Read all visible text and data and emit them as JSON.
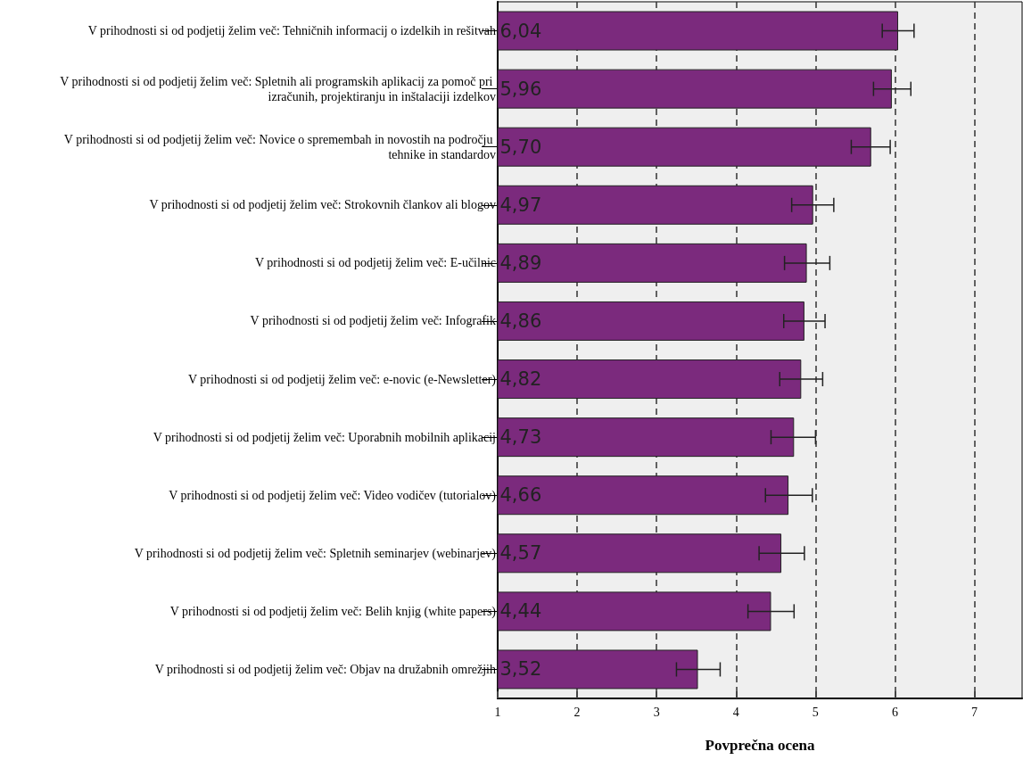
{
  "chart_data": {
    "type": "bar",
    "orientation": "horizontal",
    "xlabel": "Povprečna ocena",
    "categories": [
      "V prihodnosti si od podjetij želim več: Tehničnih informacij o izdelkih in rešitvah",
      "V prihodnosti si od podjetij želim več: Spletnih ali programskih aplikacij za pomoč pri izračunih, projektiranju in inštalaciji izdelkov",
      "V prihodnosti si od podjetij želim več: Novice o spremembah in novostih na področju tehnike in standardov",
      "V prihodnosti si od podjetij želim več: Strokovnih člankov ali blogov",
      "V prihodnosti si od podjetij želim več: E-učilnic",
      "V prihodnosti si od podjetij želim več: Infografik",
      "V prihodnosti si od podjetij želim več: e-novic (e-Newsletter)",
      "V prihodnosti si od podjetij želim več: Uporabnih mobilnih aplikacij",
      "V prihodnosti si od podjetij želim več: Video vodičev (tutorialov)",
      "V prihodnosti si od podjetij želim več: Spletnih seminarjev (webinarjev)",
      "V prihodnosti si od podjetij želim več: Belih knjig (white papers)",
      "V prihodnosti si od podjetij želim več: Objav na družabnih omrežjih"
    ],
    "values": [
      6.04,
      5.96,
      5.7,
      4.97,
      4.89,
      4.86,
      4.82,
      4.73,
      4.66,
      4.57,
      4.44,
      3.52
    ],
    "value_labels": [
      "6,04",
      "5,96",
      "5,70",
      "4,97",
      "4,89",
      "4,86",
      "4,82",
      "4,73",
      "4,66",
      "4,57",
      "4,44",
      "3,52"
    ],
    "errors": [
      [
        5.84,
        6.24
      ],
      [
        5.73,
        6.2
      ],
      [
        5.45,
        5.94
      ],
      [
        4.7,
        5.23
      ],
      [
        4.61,
        5.18
      ],
      [
        4.6,
        5.12
      ],
      [
        4.55,
        5.09
      ],
      [
        4.44,
        5.0
      ],
      [
        4.37,
        4.96
      ],
      [
        4.29,
        4.86
      ],
      [
        4.15,
        4.73
      ],
      [
        3.25,
        3.8
      ]
    ],
    "color": "#7b2a7d",
    "xlim": [
      1,
      7.6
    ],
    "xticks": [
      1,
      2,
      3,
      4,
      5,
      6,
      7
    ],
    "grid": "x"
  }
}
